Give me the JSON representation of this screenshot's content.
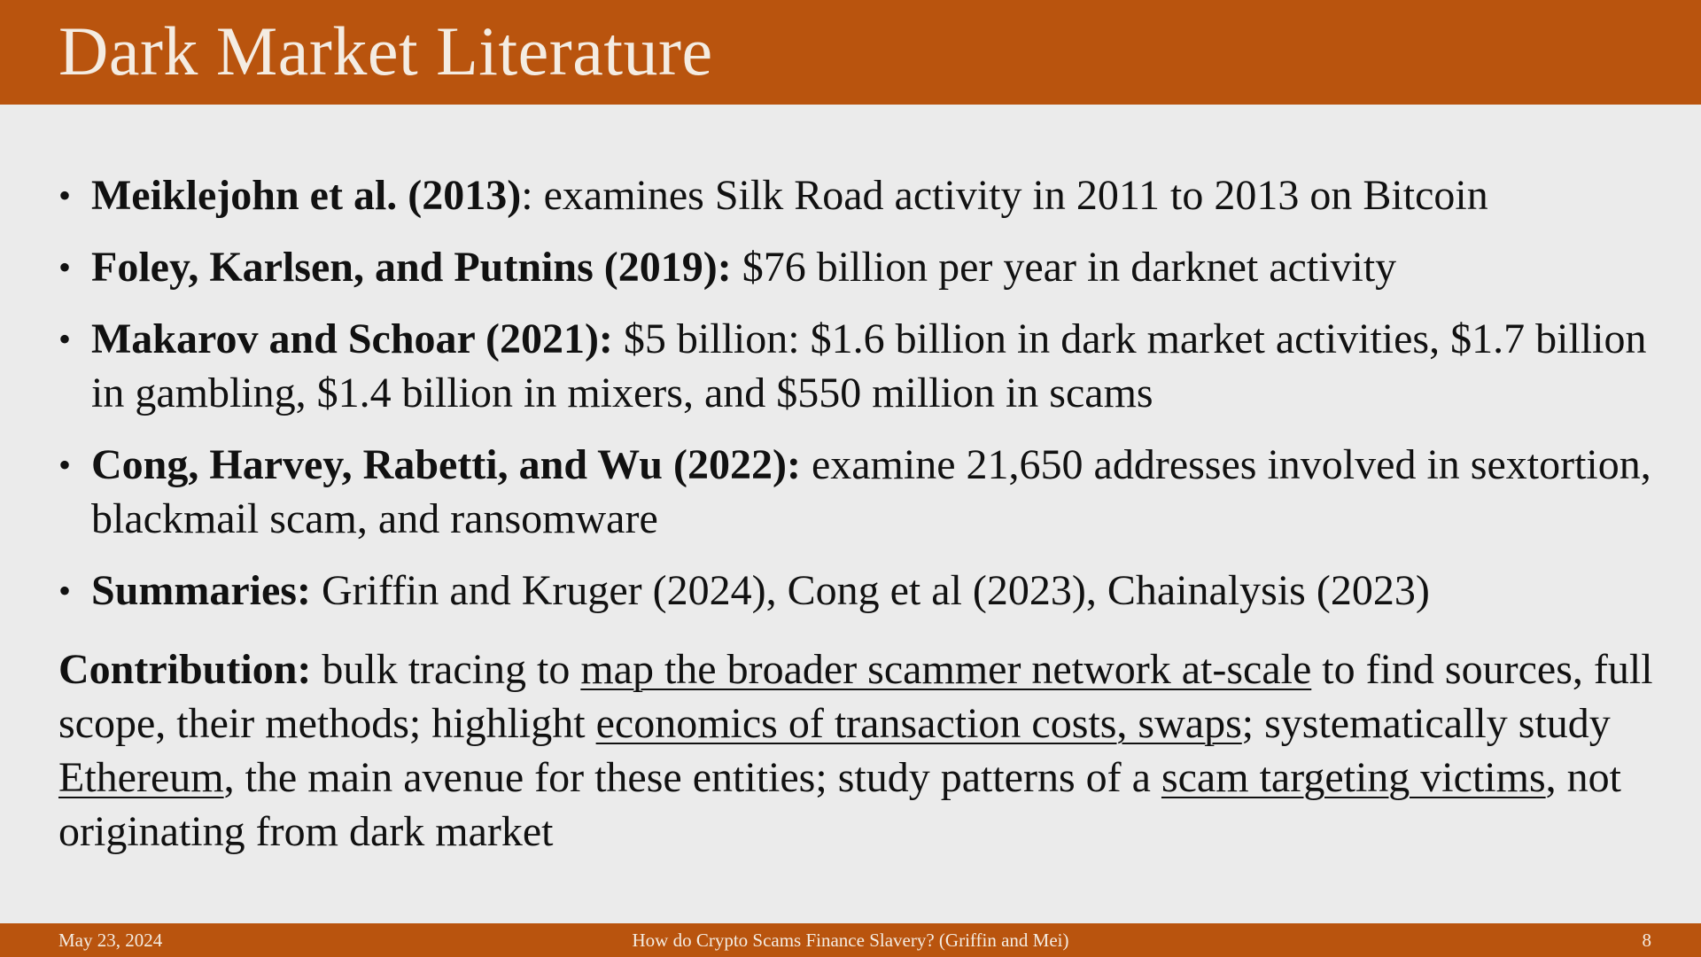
{
  "slide": {
    "title": "Dark Market Literature",
    "bullets": [
      {
        "bold": "Meiklejohn et al. (2013)",
        "sep": ":",
        "text": " examines Silk Road activity in 2011 to 2013 on Bitcoin"
      },
      {
        "bold": "Foley, Karlsen, and Putnins (2019):",
        "sep": "",
        "text": " $76 billion per year in darknet activity"
      },
      {
        "bold": "Makarov and Schoar (2021):",
        "sep": "",
        "text": " $5 billion: $1.6 billion in dark market activities, $1.7 billion in gambling, $1.4 billion in mixers, and $550 million in scams"
      },
      {
        "bold": "Cong, Harvey, Rabetti, and Wu (2022):",
        "sep": "",
        "text": " examine 21,650 addresses involved in sextortion, blackmail scam, and ransomware"
      },
      {
        "bold": "Summaries:",
        "sep": "",
        "text": " Griffin and Kruger (2024), Cong et al (2023), Chainalysis (2023)"
      }
    ],
    "contribution": {
      "label": "Contribution:",
      "t1": " bulk tracing to ",
      "u1": "map the broader scammer network at-scale",
      "t2": " to find sources, full scope, their methods; highlight ",
      "u2": "economics of  transaction costs, swaps",
      "t3": "; systematically study ",
      "u3": "Ethereum",
      "t4": ", the main avenue for these entities; study patterns of  a ",
      "u4": "scam targeting victims",
      "t5": ", not originating from dark market"
    }
  },
  "footer": {
    "date": "May 23, 2024",
    "title": "How do Crypto Scams Finance Slavery? (Griffin and Mei)",
    "page": "8"
  },
  "colors": {
    "accent": "#b9540e",
    "background": "#ebebeb",
    "header_text": "#f4ece2"
  }
}
